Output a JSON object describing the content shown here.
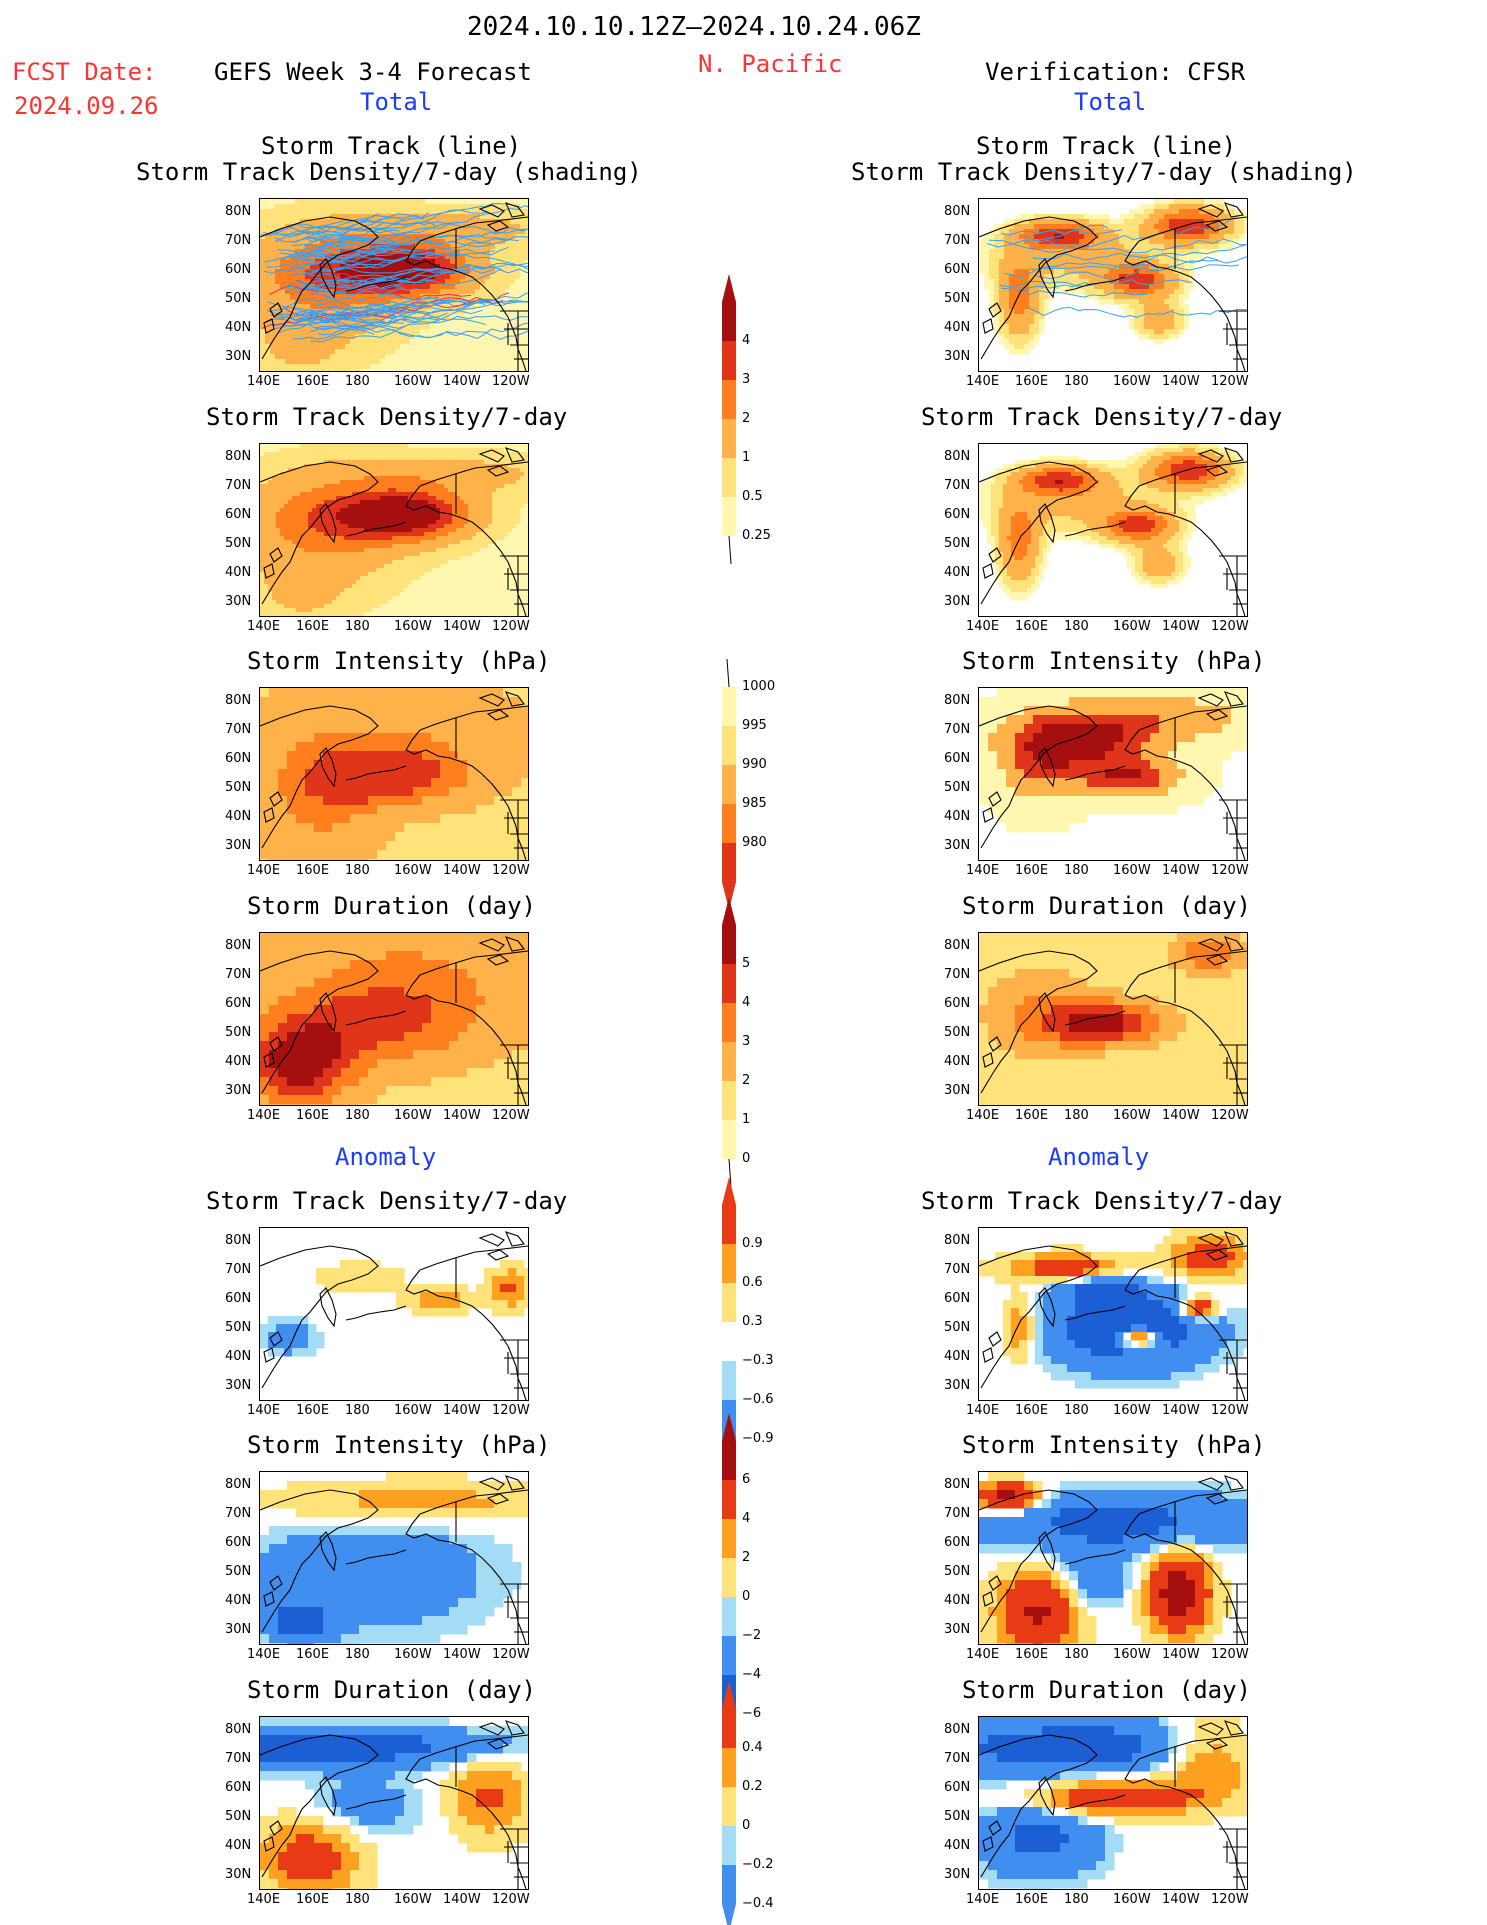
{
  "header": {
    "date_range": "2024.10.10.12Z–2024.10.24.06Z",
    "fcst_label": "FCST Date:",
    "fcst_date": "2024.09.26",
    "forecast_title": "GEFS Week 3-4 Forecast",
    "region": "N. Pacific",
    "verification_title": "Verification: CFSR",
    "total_label": "Total",
    "anomaly_label": "Anomaly"
  },
  "panel_titles": {
    "track_line": "Storm Track (line)",
    "track_shading": "Storm Track Density/7-day (shading)",
    "density": "Storm Track Density/7-day",
    "intensity": "Storm Intensity (hPa)",
    "duration": "Storm Duration (day)"
  },
  "axes": {
    "x_ticks": [
      "140E",
      "160E",
      "180",
      "160W",
      "140W",
      "120W"
    ],
    "y_ticks": [
      "80N",
      "70N",
      "60N",
      "50N",
      "40N",
      "30N"
    ]
  },
  "colors": {
    "warm": [
      "#fff7b0",
      "#ffe27a",
      "#ffb14a",
      "#ff7f1f",
      "#e0351a",
      "#a50f0f"
    ],
    "anom": [
      "#1c5fd4",
      "#3f8ef0",
      "#a5dcf5",
      "#ffffff",
      "#ffe27a",
      "#ffa020",
      "#e83a14",
      "#a50f0f"
    ],
    "track_line": "#3aa0ee",
    "track_line_fcst_core": "#e03060"
  },
  "chart_data": [
    {
      "type": "heatmap",
      "title": "Storm Track (line) / Storm Track Density/7-day (shading)",
      "dataset": "GEFS Week 3-4 Forecast",
      "field": "total",
      "overlay": "storm track lines",
      "colorbar": [
        0.25,
        0.5,
        1,
        2,
        3,
        4
      ]
    },
    {
      "type": "heatmap",
      "title": "Storm Track (line) / Storm Track Density/7-day (shading)",
      "dataset": "Verification: CFSR",
      "field": "total",
      "overlay": "storm track lines",
      "colorbar": [
        0.25,
        0.5,
        1,
        2,
        3,
        4
      ]
    },
    {
      "type": "heatmap",
      "title": "Storm Track Density/7-day",
      "dataset": "GEFS Week 3-4 Forecast",
      "field": "total",
      "colorbar": [
        0.25,
        0.5,
        1,
        2,
        3,
        4
      ]
    },
    {
      "type": "heatmap",
      "title": "Storm Track Density/7-day",
      "dataset": "Verification: CFSR",
      "field": "total",
      "colorbar": [
        0.25,
        0.5,
        1,
        2,
        3,
        4
      ]
    },
    {
      "type": "heatmap",
      "title": "Storm Intensity (hPa)",
      "dataset": "GEFS Week 3-4 Forecast",
      "field": "total",
      "colorbar": [
        1000,
        995,
        990,
        985,
        980
      ]
    },
    {
      "type": "heatmap",
      "title": "Storm Intensity (hPa)",
      "dataset": "Verification: CFSR",
      "field": "total",
      "colorbar": [
        1000,
        995,
        990,
        985,
        980
      ]
    },
    {
      "type": "heatmap",
      "title": "Storm Duration (day)",
      "dataset": "GEFS Week 3-4 Forecast",
      "field": "total",
      "colorbar": [
        0,
        1,
        2,
        3,
        4,
        5
      ]
    },
    {
      "type": "heatmap",
      "title": "Storm Duration (day)",
      "dataset": "Verification: CFSR",
      "field": "total",
      "colorbar": [
        0,
        1,
        2,
        3,
        4,
        5
      ]
    },
    {
      "type": "heatmap",
      "title": "Storm Track Density/7-day",
      "dataset": "GEFS Week 3-4 Forecast",
      "field": "anomaly",
      "colorbar": [
        -0.9,
        -0.6,
        -0.3,
        0.3,
        0.6,
        0.9
      ]
    },
    {
      "type": "heatmap",
      "title": "Storm Track Density/7-day",
      "dataset": "Verification: CFSR",
      "field": "anomaly",
      "colorbar": [
        -0.9,
        -0.6,
        -0.3,
        0.3,
        0.6,
        0.9
      ]
    },
    {
      "type": "heatmap",
      "title": "Storm Intensity (hPa)",
      "dataset": "GEFS Week 3-4 Forecast",
      "field": "anomaly",
      "colorbar": [
        -6,
        -4,
        -2,
        0,
        2,
        4,
        6
      ]
    },
    {
      "type": "heatmap",
      "title": "Storm Intensity (hPa)",
      "dataset": "Verification: CFSR",
      "field": "anomaly",
      "colorbar": [
        -6,
        -4,
        -2,
        0,
        2,
        4,
        6
      ]
    },
    {
      "type": "heatmap",
      "title": "Storm Duration (day)",
      "dataset": "GEFS Week 3-4 Forecast",
      "field": "anomaly",
      "colorbar": [
        -0.4,
        -0.2,
        0,
        0.2,
        0.4
      ]
    },
    {
      "type": "heatmap",
      "title": "Storm Duration (day)",
      "dataset": "Verification: CFSR",
      "field": "anomaly",
      "colorbar": [
        -0.4,
        -0.2,
        0,
        0.2,
        0.4
      ]
    }
  ],
  "colorbars": {
    "density": {
      "labels": [
        "4",
        "3",
        "2",
        "1",
        "0.5",
        "0.25"
      ]
    },
    "intensity": {
      "labels": [
        "1000",
        "995",
        "990",
        "985",
        "980"
      ]
    },
    "duration": {
      "labels": [
        "5",
        "4",
        "3",
        "2",
        "1",
        "0"
      ]
    },
    "density_anom": {
      "labels": [
        "0.9",
        "0.6",
        "0.3",
        "−0.3",
        "−0.6",
        "−0.9"
      ]
    },
    "intensity_anom": {
      "labels": [
        "6",
        "4",
        "2",
        "0",
        "−2",
        "−4",
        "−6"
      ]
    },
    "duration_anom": {
      "labels": [
        "0.4",
        "0.2",
        "0",
        "−0.2",
        "−0.4"
      ]
    }
  }
}
